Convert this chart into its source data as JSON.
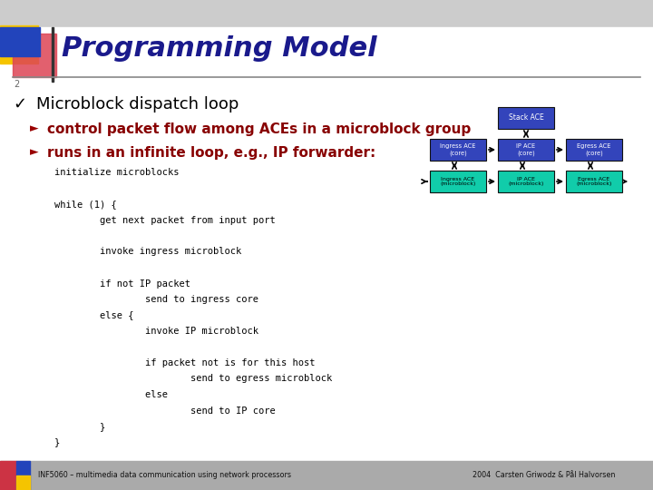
{
  "title": "Programming Model",
  "title_color": "#1a1a8c",
  "title_fontsize": 22,
  "bullet1": "Microblock dispatch loop",
  "bullet1_color": "#000000",
  "bullet1_fontsize": 13,
  "bullet2": "control packet flow among ACEs in a microblock group",
  "bullet2_color": "#880000",
  "bullet2_fontsize": 11,
  "bullet3": "runs in an infinite loop, e.g., IP forwarder:",
  "bullet3_color": "#880000",
  "bullet3_fontsize": 11,
  "code_lines": [
    "initialize microblocks",
    "",
    "while (1) {",
    "        get next packet from input port",
    "",
    "        invoke ingress microblock",
    "",
    "        if not IP packet",
    "                send to ingress core",
    "        else {",
    "                invoke IP microblock",
    "",
    "                if packet not is for this host",
    "                        send to egress microblock",
    "                else",
    "                        send to IP core",
    "        }",
    "}"
  ],
  "code_color": "#000000",
  "code_fontsize": 7.5,
  "footer_left": "INF5060 – multimedia data communication using network processors",
  "footer_right": "2004  Carsten Griwodz & Pål Halvorsen",
  "footer_bg": "#aaaaaa",
  "diagram_stack_color": "#3344bb",
  "diagram_core_color": "#3344bb",
  "diagram_mb_color": "#11ccaa",
  "diagram_text_light": "#ffffff",
  "diagram_text_dark": "#000000"
}
